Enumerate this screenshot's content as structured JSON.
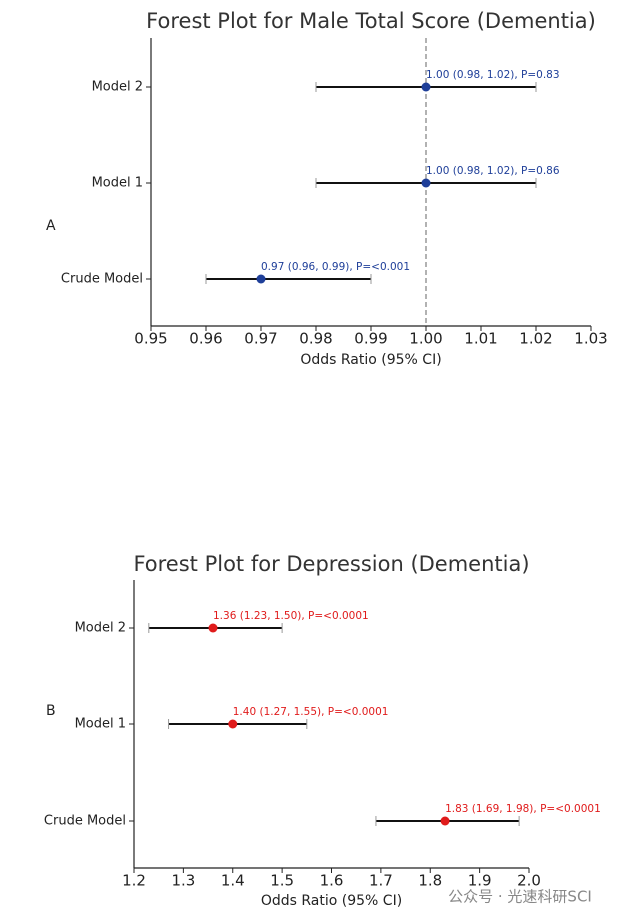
{
  "chart_data": [
    {
      "type": "forest",
      "panel_label": "A",
      "title": "Forest Plot for Male Total Score (Dementia)",
      "xlabel": "Odds Ratio (95% CI)",
      "categories": [
        "Model 2",
        "Model 1",
        "Crude Model"
      ],
      "values": [
        1.0,
        1.0,
        0.97
      ],
      "lower": [
        0.98,
        0.98,
        0.96
      ],
      "upper": [
        1.02,
        1.02,
        0.99
      ],
      "value_labels": [
        "1.00 (0.98, 1.02), P=0.83",
        "1.00 (0.98, 1.02), P=0.86",
        "0.97 (0.96, 0.99), P=<0.001"
      ],
      "color": "#1f3f99",
      "ref_line": 1,
      "xlim": [
        0.95,
        1.03
      ],
      "xticks": [
        0.95,
        0.96,
        0.97,
        0.98,
        0.99,
        {
          "value": 1,
          "label": "1.00"
        },
        1.01,
        1.02,
        1.03
      ]
    },
    {
      "type": "forest",
      "panel_label": "B",
      "title": "Forest Plot for Depression (Dementia)",
      "xlabel": "Odds Ratio (95% CI)",
      "categories": [
        "Model 2",
        "Model 1",
        "Crude Model"
      ],
      "values": [
        1.36,
        1.4,
        1.83
      ],
      "lower": [
        1.23,
        1.27,
        1.69
      ],
      "upper": [
        1.5,
        1.55,
        1.98
      ],
      "value_labels": [
        "1.36 (1.23, 1.50), P=<0.0001",
        "1.40 (1.27, 1.55), P=<0.0001",
        "1.83 (1.69, 1.98), P=<0.0001"
      ],
      "color": "#e01b1b",
      "xlim": [
        1.2,
        2.0
      ],
      "xticks": [
        1.2,
        1.3,
        1.4,
        1.5,
        1.6,
        1.7,
        1.8,
        1.9,
        {
          "value": 2,
          "label": "2.0"
        }
      ]
    }
  ],
  "watermark": "公众号 · 光速科研SCI"
}
